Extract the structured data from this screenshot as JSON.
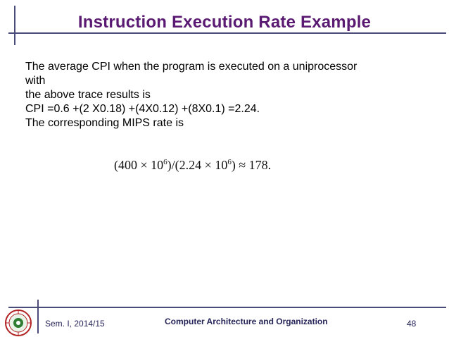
{
  "slide": {
    "title": "Instruction Execution Rate  Example",
    "body_lines": [
      "The average CPI when the program is executed on a uniprocessor",
      "with",
      "the above trace results is",
      "CPI =0.6 +(2 X0.18) +(4X0.12) +(8X0.1) =2.24.",
      "The corresponding MIPS rate is"
    ],
    "formula": {
      "part1": "(400 ",
      "times1": "×",
      "base1": " 10",
      "exp1": "6",
      "part2": ")/(2.24 ",
      "times2": "×",
      "base2": " 10",
      "exp2": "6",
      "part3": ") ≈ 178."
    }
  },
  "footer": {
    "left": "Sem. I, 2014/15",
    "center": "Computer Architecture and Organization",
    "page_number": "48"
  },
  "colors": {
    "title": "#5b1a72",
    "rules": "#4b4b7a",
    "footer_text": "#26265a",
    "seal": "#b22222"
  }
}
